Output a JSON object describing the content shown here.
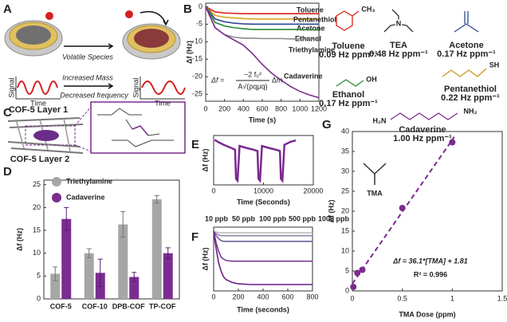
{
  "panel_labels": [
    "A",
    "B",
    "C",
    "D",
    "E",
    "F",
    "G"
  ],
  "schematic": {
    "volatile": "Volatile Species",
    "mass": "Increased Mass",
    "freq": "Decreased frequency",
    "signal_axis": "Signal",
    "time_axis": "Time"
  },
  "cof": {
    "layer1": "COF-5 Layer 1",
    "layer2": "COF-5 Layer 2"
  },
  "molecules": [
    {
      "name": "Toluene",
      "lod": "0.09 Hz ppm⁻¹",
      "color": "#e0201b",
      "groups": [
        "CH₃"
      ]
    },
    {
      "name": "TEA",
      "lod": "0.48 Hz ppm⁻¹",
      "color": "#333333",
      "groups": [
        "N"
      ]
    },
    {
      "name": "Acetone",
      "lod": "0.17 Hz ppm⁻¹",
      "color": "#2f4a8c",
      "groups": []
    },
    {
      "name": "Ethanol",
      "lod": "0.17 Hz ppm⁻¹",
      "color": "#2a8a3a",
      "groups": [
        "OH"
      ]
    },
    {
      "name": "Pentanethiol",
      "lod": "0.22 Hz ppm⁻¹",
      "color": "#c9961b",
      "groups": [
        "SH"
      ]
    },
    {
      "name": "Cadaverine",
      "lod": "1.00 Hz ppm⁻¹",
      "color": "#7b2a8e",
      "groups": [
        "H₂N",
        "NH₂"
      ]
    }
  ],
  "chart_data": [
    {
      "type": "line",
      "xlabel": "Time (s)",
      "ylabel": "Δf (Hz)",
      "equation": {
        "lhs": "Δf =",
        "numerator": "−2 f₀²",
        "denominator": "A√(ρqμq)",
        "rhs": "Δm"
      },
      "x": [
        0,
        100,
        200,
        300,
        400,
        500,
        600,
        700,
        800,
        900,
        1000,
        1100,
        1200
      ],
      "xlim": [
        0,
        1200
      ],
      "xticks": [
        0,
        200,
        400,
        600,
        800,
        1000,
        1200
      ],
      "ylim": [
        -27,
        1
      ],
      "yticks": [
        0,
        -5,
        -10,
        -15,
        -20,
        -25
      ],
      "series": [
        {
          "name": "Toluene",
          "color": "#e0201b",
          "values": [
            0,
            -1.5,
            -1.8,
            -1.9,
            -2,
            -2,
            -2,
            -2,
            -2,
            -2,
            -2,
            -2,
            -2
          ]
        },
        {
          "name": "Pentanethiol",
          "color": "#d9a521",
          "values": [
            0,
            -2.5,
            -3,
            -3.2,
            -3.4,
            -3.5,
            -3.5,
            -3.5,
            -3.5,
            -3.5,
            -3.5,
            -3.5,
            -3.5
          ]
        },
        {
          "name": "Acetone",
          "color": "#2f4a8c",
          "values": [
            0,
            -3.5,
            -4.3,
            -4.7,
            -4.9,
            -5,
            -5,
            -5,
            -5,
            -5,
            -5,
            -5,
            -5
          ]
        },
        {
          "name": "Ethanol",
          "color": "#2a8a3a",
          "values": [
            0,
            -4.5,
            -5.5,
            -6,
            -6.3,
            -6.5,
            -6.5,
            -6.5,
            -6.5,
            -6.5,
            -6.5,
            -6.6,
            -6.6
          ]
        },
        {
          "name": "Triethylamine",
          "color": "#8a8a8a",
          "values": [
            0,
            -6,
            -8,
            -8.7,
            -9,
            -9,
            -9.1,
            -9.1,
            -9.1,
            -9.2,
            -9.2,
            -9.2,
            -9.2
          ]
        },
        {
          "name": "Cadaverine",
          "color": "#7b2a8e",
          "values": [
            0,
            -6,
            -8,
            -9.5,
            -11,
            -13.5,
            -16.5,
            -19,
            -21,
            -22.8,
            -24.2,
            -25.2,
            -26
          ]
        }
      ]
    },
    {
      "type": "bar",
      "ylabel": "Δf (Hz)",
      "categories": [
        "COF-5",
        "COF-10",
        "DPB-COF",
        "TP-COF"
      ],
      "ylim": [
        0,
        26
      ],
      "yticks": [
        0,
        5,
        10,
        15,
        20,
        25
      ],
      "series": [
        {
          "name": "Triethylamine",
          "color": "#a6a6a6",
          "values": [
            5.5,
            10,
            16.3,
            21.8
          ],
          "errors": [
            1.5,
            1,
            2.8,
            0.8
          ]
        },
        {
          "name": "Cadaverine",
          "color": "#7a2d91",
          "values": [
            17.5,
            5.7,
            4.8,
            10
          ],
          "errors": [
            2.5,
            3,
            1,
            1.2
          ]
        }
      ]
    },
    {
      "type": "line",
      "xlabel": "Time (Seconds)",
      "ylabel": "Δf (Hz)",
      "x": [
        200,
        1000,
        2000,
        3500,
        4300,
        4500,
        4800,
        5200,
        6500,
        8000,
        8800,
        9000,
        9300,
        9700,
        11000,
        12500,
        13300,
        13500,
        13800,
        14200,
        15500,
        16500
      ],
      "xlim": [
        0,
        20000
      ],
      "xticks": [
        0,
        10000,
        20000
      ],
      "ylim": [
        -75,
        5
      ],
      "series": [
        {
          "color": "#7b2a8e",
          "values": [
            -2,
            -6,
            -10,
            -15,
            -18,
            -65,
            -68,
            -12,
            -15,
            -18,
            -20,
            -65,
            -68,
            -12,
            -15,
            -18,
            -20,
            -65,
            -68,
            -10,
            -5,
            -3
          ]
        }
      ]
    },
    {
      "type": "line",
      "xlabel": "Time (seconds)",
      "ylabel": "Δf (Hz)",
      "x": [
        0,
        20,
        40,
        60,
        80,
        100,
        150,
        200,
        300,
        400,
        500,
        600,
        700,
        800
      ],
      "xlim": [
        0,
        800
      ],
      "xticks": [
        0,
        200,
        400,
        600,
        800
      ],
      "ylim": [
        -42,
        3
      ],
      "series": [
        {
          "name": "10 ppb",
          "color": "#bdbdbd",
          "values": [
            0,
            -0.5,
            -0.8,
            -1,
            -1,
            -1,
            -1,
            -1,
            -1,
            -1,
            -1,
            -1,
            -1,
            -1
          ]
        },
        {
          "name": "50 ppb",
          "color": "#8d86a8",
          "values": [
            0,
            -1.5,
            -2.5,
            -3,
            -3,
            -3,
            -3,
            -3,
            -3,
            -3,
            -3,
            -3,
            -3,
            -3
          ]
        },
        {
          "name": "100 ppb",
          "color": "#6f5c9a",
          "values": [
            0,
            -3,
            -5,
            -6.5,
            -7,
            -7,
            -7,
            -7,
            -7,
            -7,
            -7,
            -7,
            -7,
            -7
          ]
        },
        {
          "name": "500 ppb",
          "color": "#7b3b98",
          "values": [
            0,
            -8,
            -14,
            -18,
            -19.5,
            -20.5,
            -21,
            -21,
            -21,
            -21,
            -21,
            -21,
            -21,
            -21
          ]
        },
        {
          "name": "1000 ppb",
          "color": "#6a1f8a",
          "values": [
            0,
            -12,
            -22,
            -28,
            -32,
            -34,
            -36,
            -37,
            -37.5,
            -37.5,
            -37.5,
            -37.5,
            -37.5,
            -37.5
          ]
        }
      ]
    },
    {
      "type": "scatter",
      "xlabel": "TMA Dose (ppm)",
      "ylabel": "Δf (Hz)",
      "annotation": "TMA",
      "x": [
        0.01,
        0.05,
        0.1,
        0.5,
        1
      ],
      "values": [
        1,
        4.5,
        5.3,
        20.8,
        37.3
      ],
      "color": "#7b2a8e",
      "xlim": [
        0,
        1.5
      ],
      "xticks": [
        0,
        0.5,
        1,
        1.5
      ],
      "ylim": [
        0,
        40
      ],
      "yticks": [
        0,
        5,
        10,
        15,
        20,
        25,
        30,
        35,
        40
      ],
      "fit": {
        "label": "Δf = 36.1*[TMA] + 1.81",
        "slope": 36.1,
        "intercept": 1.81,
        "r2_label": "R² = 0.996"
      }
    }
  ]
}
